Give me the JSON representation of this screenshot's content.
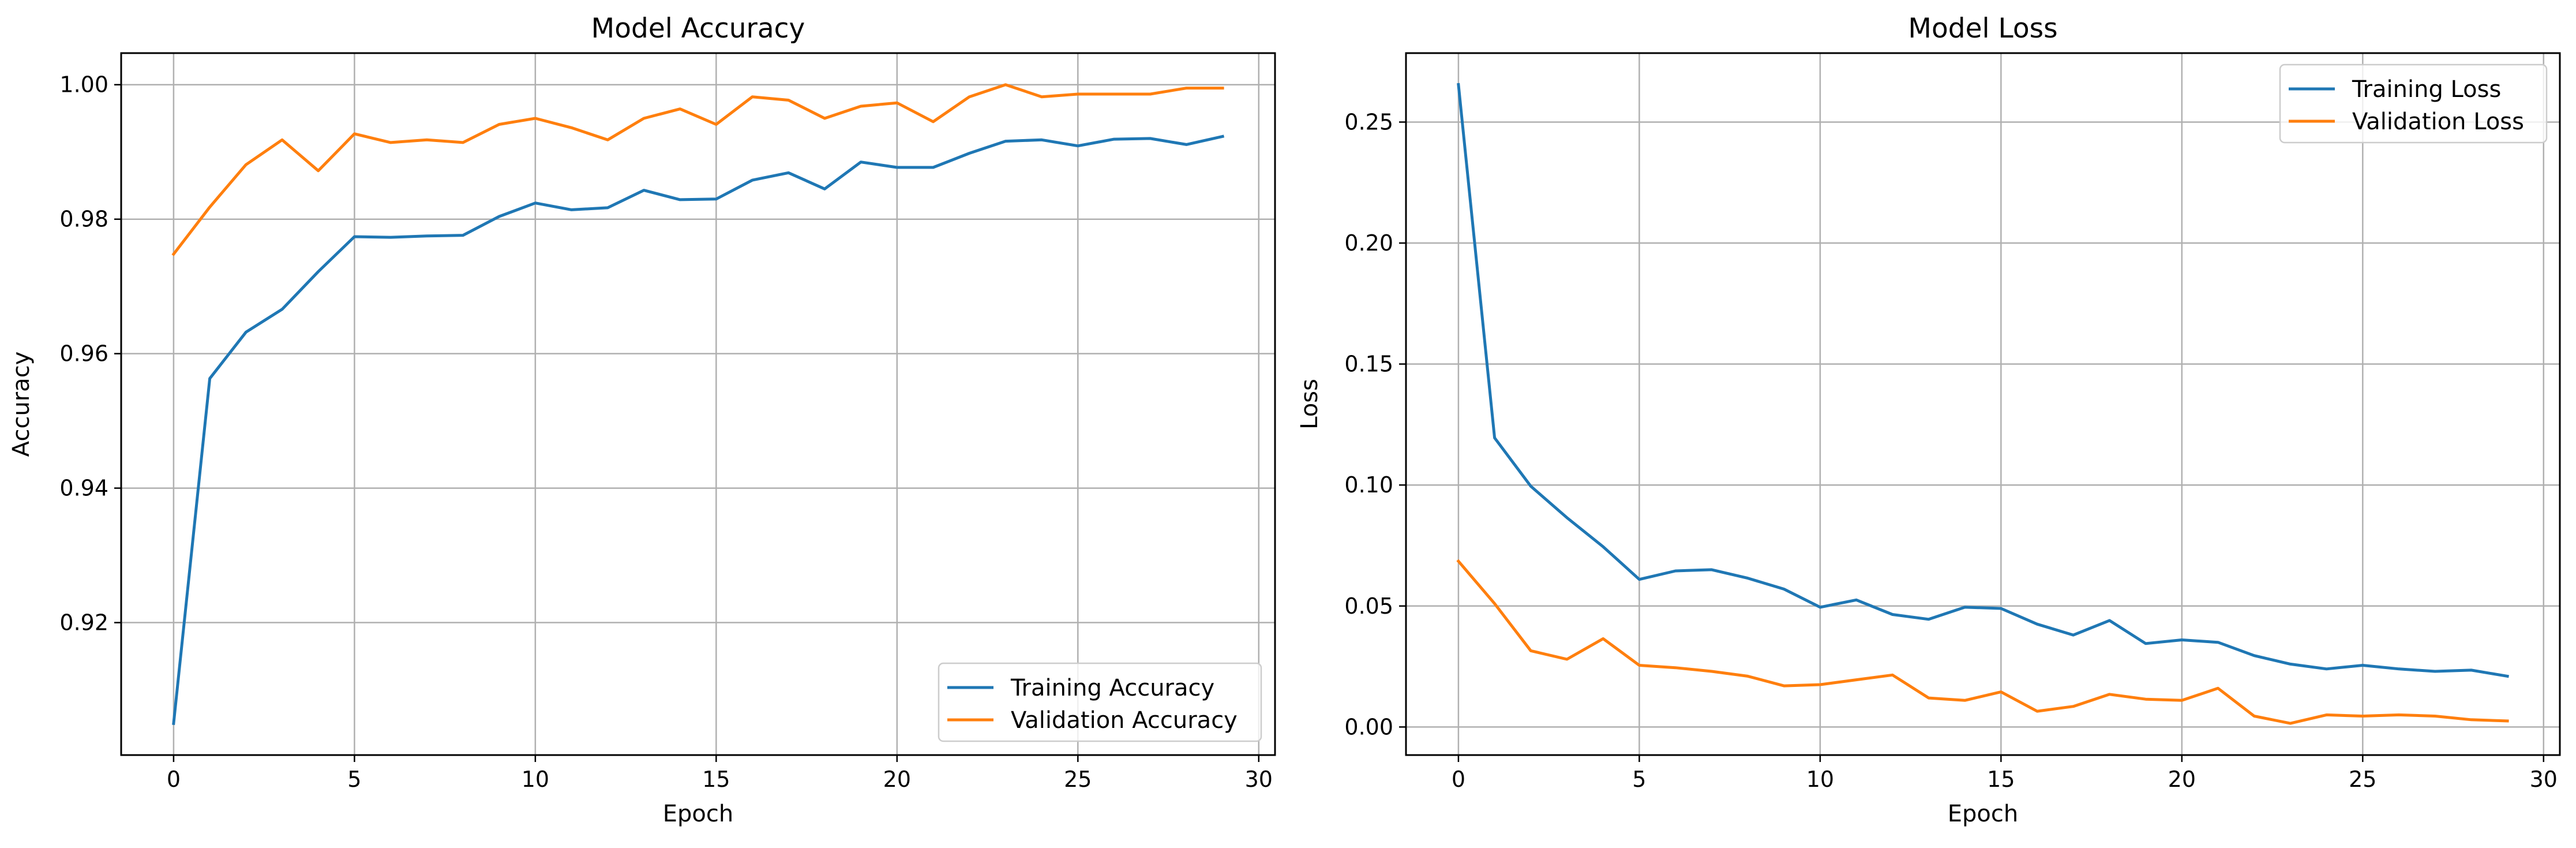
{
  "colors": {
    "training": "#1f77b4",
    "validation": "#ff7f0e",
    "grid": "#b0b0b0",
    "axes": "#000000",
    "background": "#ffffff"
  },
  "chart_data": [
    {
      "type": "line",
      "title": "Model Accuracy",
      "xlabel": "Epoch",
      "ylabel": "Accuracy",
      "xlim": [
        -1.45,
        30.45
      ],
      "ylim": [
        0.9003,
        1.0047
      ],
      "xticks": [
        0,
        5,
        10,
        15,
        20,
        25,
        30
      ],
      "yticks": [
        0.92,
        0.94,
        0.96,
        0.98,
        1.0
      ],
      "xtick_labels": [
        "0",
        "5",
        "10",
        "15",
        "20",
        "25",
        "30"
      ],
      "ytick_labels": [
        "0.92",
        "0.94",
        "0.96",
        "0.98",
        "1.00"
      ],
      "grid": true,
      "legend_position": "lower-right",
      "x": [
        0,
        1,
        2,
        3,
        4,
        5,
        6,
        7,
        8,
        9,
        10,
        11,
        12,
        13,
        14,
        15,
        16,
        17,
        18,
        19,
        20,
        21,
        22,
        23,
        24,
        25,
        26,
        27,
        28,
        29
      ],
      "series": [
        {
          "name": "Training Accuracy",
          "color": "#1f77b4",
          "values": [
            0.905,
            0.9563,
            0.9632,
            0.9666,
            0.9722,
            0.9774,
            0.9773,
            0.9775,
            0.9776,
            0.9804,
            0.9824,
            0.9814,
            0.9817,
            0.9843,
            0.9829,
            0.983,
            0.9858,
            0.9869,
            0.9845,
            0.9885,
            0.9877,
            0.9877,
            0.9898,
            0.9916,
            0.9918,
            0.9909,
            0.9919,
            0.992,
            0.9911,
            0.9923
          ]
        },
        {
          "name": "Validation Accuracy",
          "color": "#ff7f0e",
          "values": [
            0.9748,
            0.9818,
            0.9881,
            0.9918,
            0.9872,
            0.9927,
            0.9914,
            0.9918,
            0.9914,
            0.9941,
            0.995,
            0.9936,
            0.9918,
            0.995,
            0.9964,
            0.9941,
            0.9982,
            0.9977,
            0.995,
            0.9968,
            0.9973,
            0.9945,
            0.9982,
            1.0,
            0.9982,
            0.9986,
            0.9986,
            0.9986,
            0.9995,
            0.9995
          ]
        }
      ]
    },
    {
      "type": "line",
      "title": "Model Loss",
      "xlabel": "Epoch",
      "ylabel": "Loss",
      "xlim": [
        -1.45,
        30.45
      ],
      "ylim": [
        -0.0116,
        0.2785
      ],
      "xticks": [
        0,
        5,
        10,
        15,
        20,
        25,
        30
      ],
      "yticks": [
        0.0,
        0.05,
        0.1,
        0.15,
        0.2,
        0.25
      ],
      "xtick_labels": [
        "0",
        "5",
        "10",
        "15",
        "20",
        "25",
        "30"
      ],
      "ytick_labels": [
        "0.00",
        "0.05",
        "0.10",
        "0.15",
        "0.20",
        "0.25"
      ],
      "grid": true,
      "legend_position": "upper-right",
      "x": [
        0,
        1,
        2,
        3,
        4,
        5,
        6,
        7,
        8,
        9,
        10,
        11,
        12,
        13,
        14,
        15,
        16,
        17,
        18,
        19,
        20,
        21,
        22,
        23,
        24,
        25,
        26,
        27,
        28,
        29
      ],
      "series": [
        {
          "name": "Training Loss",
          "color": "#1f77b4",
          "values": [
            0.2655,
            0.1195,
            0.0995,
            0.0865,
            0.0745,
            0.061,
            0.0645,
            0.065,
            0.0615,
            0.057,
            0.0495,
            0.0525,
            0.0465,
            0.0445,
            0.0495,
            0.049,
            0.0425,
            0.038,
            0.044,
            0.0345,
            0.036,
            0.035,
            0.0295,
            0.026,
            0.024,
            0.0255,
            0.024,
            0.023,
            0.0235,
            0.021
          ]
        },
        {
          "name": "Validation Loss",
          "color": "#ff7f0e",
          "values": [
            0.0685,
            0.051,
            0.0315,
            0.028,
            0.0365,
            0.0255,
            0.0245,
            0.023,
            0.021,
            0.017,
            0.0175,
            0.0195,
            0.0215,
            0.012,
            0.011,
            0.0145,
            0.0065,
            0.0085,
            0.0135,
            0.0115,
            0.011,
            0.016,
            0.0045,
            0.0015,
            0.005,
            0.0045,
            0.005,
            0.0045,
            0.003,
            0.0025
          ]
        }
      ]
    }
  ]
}
